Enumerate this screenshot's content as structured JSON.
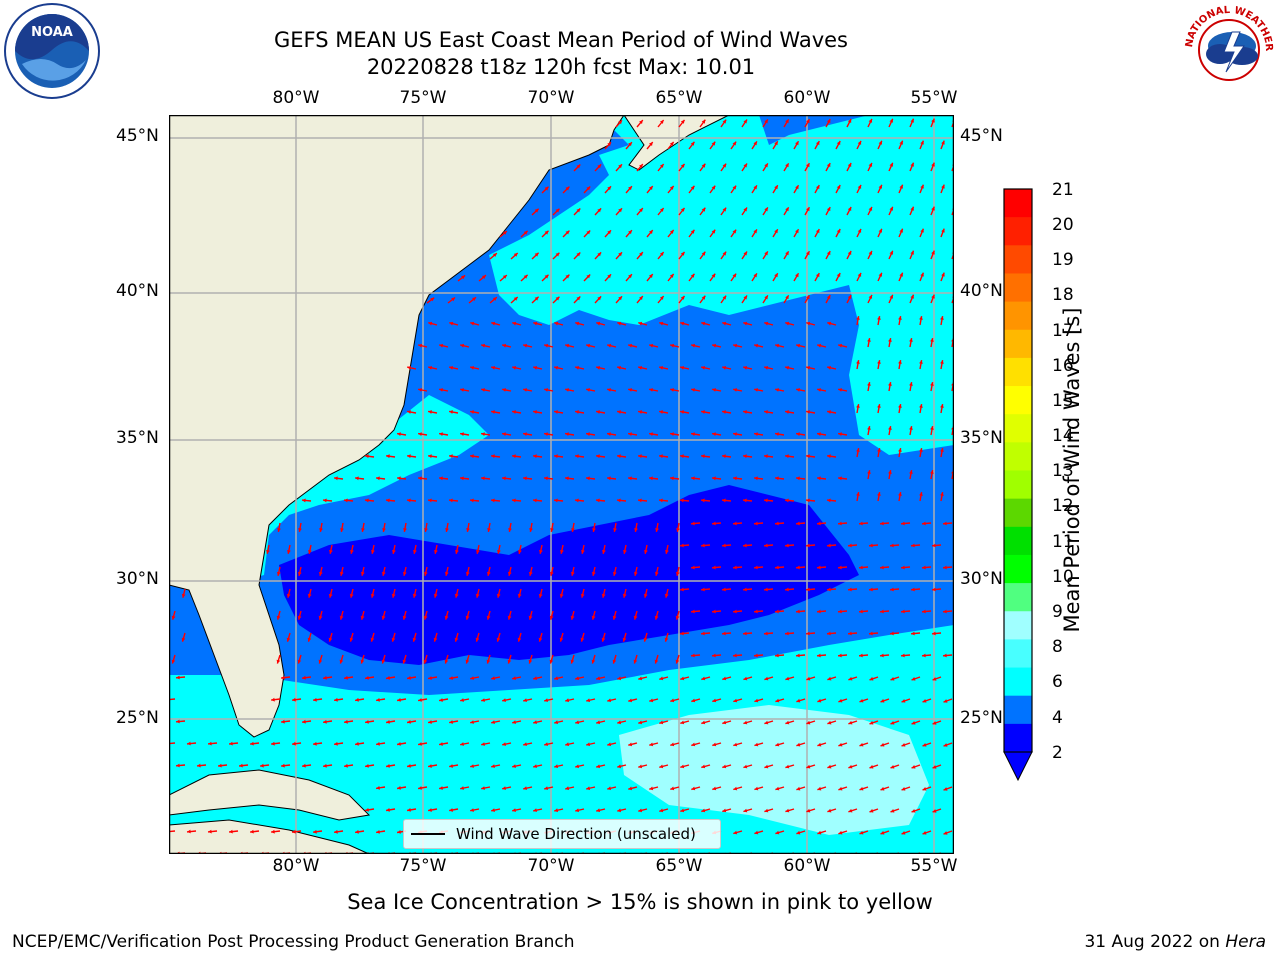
{
  "title": {
    "line1": "GEFS MEAN US East Coast Mean Period of Wind Waves",
    "line2": "20220828 t18z 120h fcst   Max: 10.01"
  },
  "map": {
    "lon_ticks": [
      "80°W",
      "75°W",
      "70°W",
      "65°W",
      "60°W",
      "55°W"
    ],
    "lat_ticks": [
      "45°N",
      "40°N",
      "35°N",
      "30°N",
      "25°N"
    ],
    "lon_range": [
      -85,
      -54
    ],
    "lat_range": [
      20.5,
      46
    ],
    "ocean_levels_colors": {
      "2-4": "#0073ff",
      "4-6": "#00ffff",
      "6-8": "#48ffff",
      "lt2": "#0000ff",
      "8-9": "#a0ffff"
    },
    "land_color": "#efefdc",
    "arrow_color": "#ff0000",
    "legend": "Wind Wave Direction (unscaled)"
  },
  "colorbar": {
    "label": "Mean Period of Wind Waves [s]",
    "ticks": [
      "21",
      "20",
      "19",
      "18",
      "17",
      "16",
      "15",
      "14",
      "13",
      "12",
      "11",
      "10",
      "9",
      "8",
      "6",
      "4",
      "2"
    ],
    "colors": [
      "#ff0000",
      "#ff2000",
      "#ff4a00",
      "#ff7000",
      "#ff9400",
      "#ffb800",
      "#ffe000",
      "#ffff00",
      "#e0ff00",
      "#c0ff00",
      "#a0ff00",
      "#5cd800",
      "#00e000",
      "#00ff00",
      "#50ff80",
      "#a0ffff",
      "#48ffff",
      "#00ffff",
      "#0073ff",
      "#0000ff"
    ]
  },
  "ice_note": "Sea Ice Concentration > 15% is shown in pink to yellow",
  "footer": {
    "left": "NCEP/EMC/Verification Post Processing Product Generation Branch",
    "right_date": "31 Aug 2022 on ",
    "right_machine": "Hera"
  },
  "logos": {
    "noaa": "NOAA",
    "nws": "NATIONAL WEATHER SERVICE"
  }
}
